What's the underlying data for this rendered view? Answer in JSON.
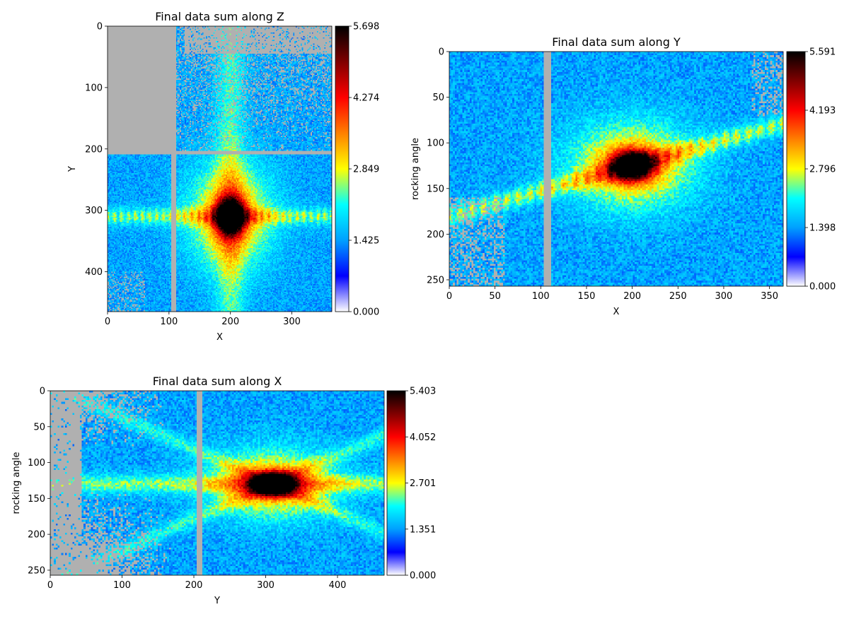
{
  "colors": {
    "background": "#ffffff",
    "masked": "#b0b0b0",
    "colormap": [
      "#ffffff",
      "#0000ff",
      "#00a0ff",
      "#00ffff",
      "#ffff00",
      "#ff8000",
      "#ff0000",
      "#800000",
      "#000000"
    ]
  },
  "chart_data": [
    {
      "type": "heatmap",
      "title": "Final data sum along Z",
      "xlabel": "X",
      "ylabel": "Y",
      "xlim": [
        0,
        365
      ],
      "ylim": [
        465,
        0
      ],
      "xticks": [
        0,
        100,
        200,
        300
      ],
      "yticks": [
        0,
        100,
        200,
        300,
        400
      ],
      "colorbar": {
        "min": 0.0,
        "max": 5.698,
        "ticks": [
          "0.000",
          "1.425",
          "2.849",
          "4.274",
          "5.698"
        ]
      },
      "peak": {
        "x": 200,
        "y": 310
      },
      "mask_gaps": [
        {
          "axis": "x",
          "at": 107
        },
        {
          "axis": "y",
          "at": 207
        }
      ]
    },
    {
      "type": "heatmap",
      "title": "Final data sum along Y",
      "xlabel": "X",
      "ylabel": "rocking angle",
      "xlim": [
        0,
        365
      ],
      "ylim": [
        257,
        0
      ],
      "xticks": [
        0,
        50,
        100,
        150,
        200,
        250,
        300,
        350
      ],
      "yticks": [
        0,
        50,
        100,
        150,
        200,
        250
      ],
      "colorbar": {
        "min": 0.0,
        "max": 5.591,
        "ticks": [
          "0.000",
          "1.398",
          "2.796",
          "4.193",
          "5.591"
        ]
      },
      "peak": {
        "x": 200,
        "y": 125
      },
      "mask_gaps": [
        {
          "axis": "x",
          "at": 107
        }
      ]
    },
    {
      "type": "heatmap",
      "title": "Final data sum along X",
      "xlabel": "Y",
      "ylabel": "rocking angle",
      "xlim": [
        0,
        465
      ],
      "ylim": [
        257,
        0
      ],
      "xticks": [
        0,
        100,
        200,
        300,
        400
      ],
      "yticks": [
        0,
        50,
        100,
        150,
        200,
        250
      ],
      "colorbar": {
        "min": 0.0,
        "max": 5.403,
        "ticks": [
          "0.000",
          "1.351",
          "2.701",
          "4.052",
          "5.403"
        ]
      },
      "peak": {
        "x": 310,
        "y": 130
      },
      "mask_gaps": [
        {
          "axis": "x",
          "at": 207
        }
      ]
    }
  ]
}
